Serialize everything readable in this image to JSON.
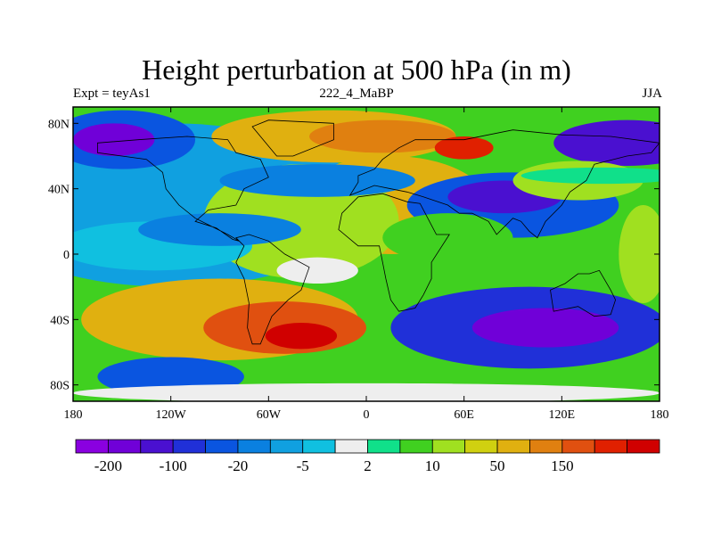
{
  "chart_data": {
    "type": "heatmap",
    "title": "Height perturbation at 500 hPa (in m)",
    "subtitle_left": "Expt = teyAs1",
    "subtitle_center": "222_4_MaBP",
    "subtitle_right": "JJA",
    "x_ticks": [
      {
        "value": -180,
        "label": "180"
      },
      {
        "value": -120,
        "label": "120W"
      },
      {
        "value": -60,
        "label": "60W"
      },
      {
        "value": 0,
        "label": "0"
      },
      {
        "value": 60,
        "label": "60E"
      },
      {
        "value": 120,
        "label": "120E"
      },
      {
        "value": 180,
        "label": "180"
      }
    ],
    "y_ticks": [
      {
        "value": 80,
        "label": "80N"
      },
      {
        "value": 40,
        "label": "40N"
      },
      {
        "value": 0,
        "label": "0"
      },
      {
        "value": -40,
        "label": "40S"
      },
      {
        "value": -80,
        "label": "80S"
      }
    ],
    "xlim": [
      -180,
      180
    ],
    "ylim": [
      -90,
      90
    ],
    "colorbar": {
      "colors": [
        "#8a00e0",
        "#7000d8",
        "#4a10d0",
        "#2030d8",
        "#0a55e0",
        "#0a80e0",
        "#10a0e0",
        "#10c0e0",
        "#eeeeee",
        "#10e08a",
        "#40d020",
        "#a0e020",
        "#d0d010",
        "#e0b010",
        "#e08010",
        "#e05010",
        "#e02000",
        "#d00000"
      ],
      "labels": [
        {
          "edge": 1,
          "text": "-200"
        },
        {
          "edge": 3,
          "text": "-100"
        },
        {
          "edge": 5,
          "text": "-20"
        },
        {
          "edge": 7,
          "text": "-5"
        },
        {
          "edge": 9,
          "text": "2"
        },
        {
          "edge": 11,
          "text": "10"
        },
        {
          "edge": 13,
          "text": "50"
        },
        {
          "edge": 15,
          "text": "150"
        }
      ]
    },
    "regions": [
      {
        "level": 6,
        "lon": -120,
        "lat": 30,
        "rlon": 120,
        "rlat": 50
      },
      {
        "level": 13,
        "lon": 15,
        "lat": 30,
        "rlon": 60,
        "rlat": 30
      },
      {
        "level": 11,
        "lon": -40,
        "lat": 20,
        "rlon": 60,
        "rlat": 35
      },
      {
        "level": 4,
        "lon": -150,
        "lat": 70,
        "rlon": 45,
        "rlat": 18
      },
      {
        "level": 1,
        "lon": -155,
        "lat": 70,
        "rlon": 25,
        "rlat": 10
      },
      {
        "level": 13,
        "lon": -20,
        "lat": 72,
        "rlon": 75,
        "rlat": 16
      },
      {
        "level": 14,
        "lon": 10,
        "lat": 72,
        "rlon": 45,
        "rlat": 10
      },
      {
        "level": 16,
        "lon": 60,
        "lat": 65,
        "rlon": 18,
        "rlat": 7
      },
      {
        "level": 5,
        "lon": -30,
        "lat": 45,
        "rlon": 60,
        "rlat": 10
      },
      {
        "level": 2,
        "lon": 160,
        "lat": 68,
        "rlon": 45,
        "rlat": 14
      },
      {
        "level": 4,
        "lon": 90,
        "lat": 30,
        "rlon": 65,
        "rlat": 20
      },
      {
        "level": 2,
        "lon": 85,
        "lat": 35,
        "rlon": 35,
        "rlat": 10
      },
      {
        "level": 7,
        "lon": -130,
        "lat": 5,
        "rlon": 60,
        "rlat": 15
      },
      {
        "level": 5,
        "lon": -90,
        "lat": 15,
        "rlon": 50,
        "rlat": 10
      },
      {
        "level": 10,
        "lon": 50,
        "lat": 10,
        "rlon": 40,
        "rlat": 15
      },
      {
        "level": 11,
        "lon": 130,
        "lat": 45,
        "rlon": 40,
        "rlat": 12
      },
      {
        "level": 9,
        "lon": 145,
        "lat": 48,
        "rlon": 50,
        "rlat": 5
      },
      {
        "level": 13,
        "lon": -90,
        "lat": -40,
        "rlon": 85,
        "rlat": 25
      },
      {
        "level": 15,
        "lon": -50,
        "lat": -45,
        "rlon": 50,
        "rlat": 16
      },
      {
        "level": 17,
        "lon": -40,
        "lat": -50,
        "rlon": 22,
        "rlat": 8
      },
      {
        "level": 3,
        "lon": 100,
        "lat": -45,
        "rlon": 85,
        "rlat": 25
      },
      {
        "level": 1,
        "lon": 110,
        "lat": -45,
        "rlon": 45,
        "rlat": 12
      },
      {
        "level": 4,
        "lon": -120,
        "lat": -75,
        "rlon": 45,
        "rlat": 12
      },
      {
        "level": 8,
        "lon": 0,
        "lat": -85,
        "rlon": 180,
        "rlat": 6
      },
      {
        "level": 11,
        "lon": 170,
        "lat": 0,
        "rlon": 15,
        "rlat": 30
      },
      {
        "level": 8,
        "lon": -30,
        "lat": -10,
        "rlon": 25,
        "rlat": 8
      }
    ]
  }
}
